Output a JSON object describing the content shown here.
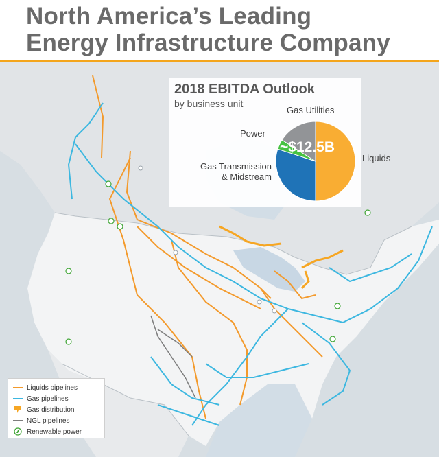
{
  "header": {
    "title_line1": "North America’s Leading",
    "title_line2": "Energy Infrastructure Company"
  },
  "colors": {
    "title_text": "#6a6a6a",
    "accent_rule": "#f4a51c",
    "liquids": "#f39a2c",
    "gas": "#3cb7e0",
    "gas_distribution": "#f6a623",
    "ngl": "#7d7d7d",
    "renewable": "#3fa535",
    "pie_liquids": "#f9ad33",
    "pie_gas_transmission": "#1f73b7",
    "pie_power": "#47c242",
    "pie_gas_utilities": "#929497"
  },
  "outlook": {
    "title": "2018 EBITDA Outlook",
    "subtitle": "by business unit"
  },
  "chart_data": {
    "type": "pie",
    "title": "2018 EBITDA Outlook",
    "subtitle": "by business unit",
    "center_label": "~$12.5B",
    "slices": [
      {
        "label": "Liquids",
        "value": 50
      },
      {
        "label": "Gas Transmission & Midstream",
        "value": 30
      },
      {
        "label": "Power",
        "value": 4
      },
      {
        "label": "Gas Utilities",
        "value": 16
      }
    ],
    "slice_label_lines": [
      [
        "Liquids"
      ],
      [
        "Gas Transmission",
        "& Midstream"
      ],
      [
        "Power"
      ],
      [
        "Gas Utilities"
      ]
    ]
  },
  "legend": {
    "items": [
      {
        "label": "Liquids pipelines",
        "icon": "orange-line-icon"
      },
      {
        "label": "Gas pipelines",
        "icon": "blue-line-icon"
      },
      {
        "label": "Gas distribution",
        "icon": "gas-distribution-flag-icon"
      },
      {
        "label": "NGL pipelines",
        "icon": "gray-line-icon"
      },
      {
        "label": "Renewable power",
        "icon": "renewable-leaf-icon"
      }
    ]
  }
}
